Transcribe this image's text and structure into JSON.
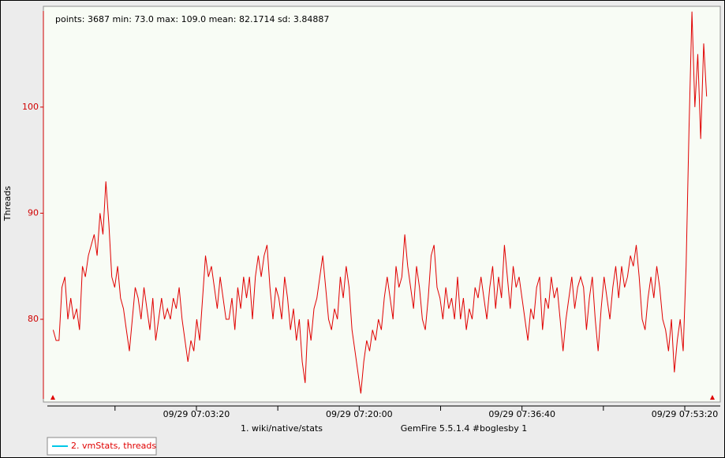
{
  "chart_data": {
    "type": "line",
    "stats_text": "points: 3687 min: 73.0 max: 109.0 mean: 82.1714 sd: 3.84887",
    "ylabel": "Threads",
    "xlabel_left": "1. wiki/native/stats",
    "xlabel_right": "GemFire 5.5.1.4 #boglesby 1",
    "axis_color": "#d00000",
    "legend_line_color": "#00c8e8",
    "ylim": [
      72.2,
      109.5
    ],
    "yticks": [
      80,
      90,
      100
    ],
    "xlim": [
      24460,
      28618
    ],
    "xticks": [
      {
        "value": 25400,
        "label": "09/29 07:03:20"
      },
      {
        "value": 26400,
        "label": "09/29 07:20:00"
      },
      {
        "value": 27400,
        "label": "09/29 07:36:40"
      },
      {
        "value": 28400,
        "label": "09/29 07:53:20"
      }
    ],
    "xticks_minor": [
      24900,
      25900,
      26900,
      27900
    ],
    "x": [
      24520,
      24538,
      24556,
      24574,
      24592,
      24610,
      24628,
      24646,
      24664,
      24682,
      24700,
      24718,
      24736,
      24754,
      24772,
      24790,
      24808,
      24826,
      24844,
      24862,
      24880,
      24898,
      24916,
      24934,
      24952,
      24970,
      24988,
      25006,
      25024,
      25042,
      25060,
      25078,
      25096,
      25114,
      25132,
      25150,
      25168,
      25186,
      25204,
      25222,
      25240,
      25258,
      25276,
      25294,
      25312,
      25330,
      25348,
      25366,
      25384,
      25402,
      25420,
      25438,
      25456,
      25474,
      25492,
      25510,
      25528,
      25546,
      25564,
      25582,
      25600,
      25618,
      25636,
      25654,
      25672,
      25690,
      25708,
      25726,
      25744,
      25762,
      25780,
      25798,
      25816,
      25834,
      25852,
      25870,
      25888,
      25906,
      25924,
      25942,
      25960,
      25978,
      25996,
      26014,
      26032,
      26050,
      26068,
      26086,
      26104,
      26122,
      26140,
      26158,
      26176,
      26194,
      26212,
      26230,
      26248,
      26266,
      26284,
      26302,
      26320,
      26338,
      26356,
      26374,
      26392,
      26410,
      26428,
      26446,
      26464,
      26482,
      26500,
      26518,
      26536,
      26554,
      26572,
      26590,
      26608,
      26626,
      26644,
      26662,
      26680,
      26698,
      26716,
      26734,
      26752,
      26770,
      26788,
      26806,
      26824,
      26842,
      26860,
      26878,
      26896,
      26914,
      26932,
      26950,
      26968,
      26986,
      27004,
      27022,
      27040,
      27058,
      27076,
      27094,
      27112,
      27130,
      27148,
      27166,
      27184,
      27202,
      27220,
      27238,
      27256,
      27274,
      27292,
      27310,
      27328,
      27346,
      27364,
      27382,
      27400,
      27418,
      27436,
      27454,
      27472,
      27490,
      27508,
      27526,
      27544,
      27562,
      27580,
      27598,
      27616,
      27634,
      27652,
      27670,
      27688,
      27706,
      27724,
      27742,
      27760,
      27778,
      27796,
      27814,
      27832,
      27850,
      27868,
      27886,
      27904,
      27922,
      27940,
      27958,
      27976,
      27994,
      28012,
      28030,
      28048,
      28066,
      28084,
      28102,
      28120,
      28138,
      28156,
      28174,
      28192,
      28210,
      28228,
      28246,
      28264,
      28282,
      28300,
      28318,
      28336,
      28354,
      28372,
      28390,
      28408,
      28426,
      28444,
      28462,
      28480,
      28498,
      28516,
      28534
    ],
    "series": [
      {
        "name": "2. vmStats, threads",
        "color": "#e00000",
        "values": [
          79,
          78,
          78,
          83,
          84,
          80,
          82,
          80,
          81,
          79,
          85,
          84,
          86,
          87,
          88,
          86,
          90,
          88,
          93,
          89,
          84,
          83,
          85,
          82,
          81,
          79,
          77,
          80,
          83,
          82,
          80,
          83,
          81,
          79,
          82,
          78,
          80,
          82,
          80,
          81,
          80,
          82,
          81,
          83,
          80,
          78,
          76,
          78,
          77,
          80,
          78,
          82,
          86,
          84,
          85,
          83,
          81,
          84,
          82,
          80,
          80,
          82,
          79,
          83,
          81,
          84,
          82,
          84,
          80,
          84,
          86,
          84,
          86,
          87,
          83,
          80,
          83,
          82,
          80,
          84,
          82,
          79,
          81,
          78,
          80,
          76,
          74,
          80,
          78,
          81,
          82,
          84,
          86,
          83,
          80,
          79,
          81,
          80,
          84,
          82,
          85,
          83,
          79,
          77,
          75,
          73,
          76,
          78,
          77,
          79,
          78,
          80,
          79,
          82,
          84,
          82,
          80,
          85,
          83,
          84,
          88,
          85,
          83,
          81,
          85,
          83,
          80,
          79,
          82,
          86,
          87,
          83,
          82,
          80,
          83,
          81,
          82,
          80,
          84,
          80,
          82,
          79,
          81,
          80,
          83,
          82,
          84,
          82,
          80,
          83,
          85,
          81,
          84,
          82,
          87,
          84,
          81,
          85,
          83,
          84,
          82,
          80,
          78,
          81,
          80,
          83,
          84,
          79,
          82,
          81,
          84,
          82,
          83,
          80,
          77,
          80,
          82,
          84,
          81,
          83,
          84,
          83,
          79,
          82,
          84,
          80,
          77,
          81,
          84,
          82,
          80,
          83,
          85,
          82,
          85,
          83,
          84,
          86,
          85,
          87,
          84,
          80,
          79,
          82,
          84,
          82,
          85,
          83,
          80,
          79,
          77,
          80,
          75,
          78,
          80,
          77,
          85,
          98,
          109,
          100,
          105,
          97,
          106,
          101
        ]
      }
    ]
  }
}
